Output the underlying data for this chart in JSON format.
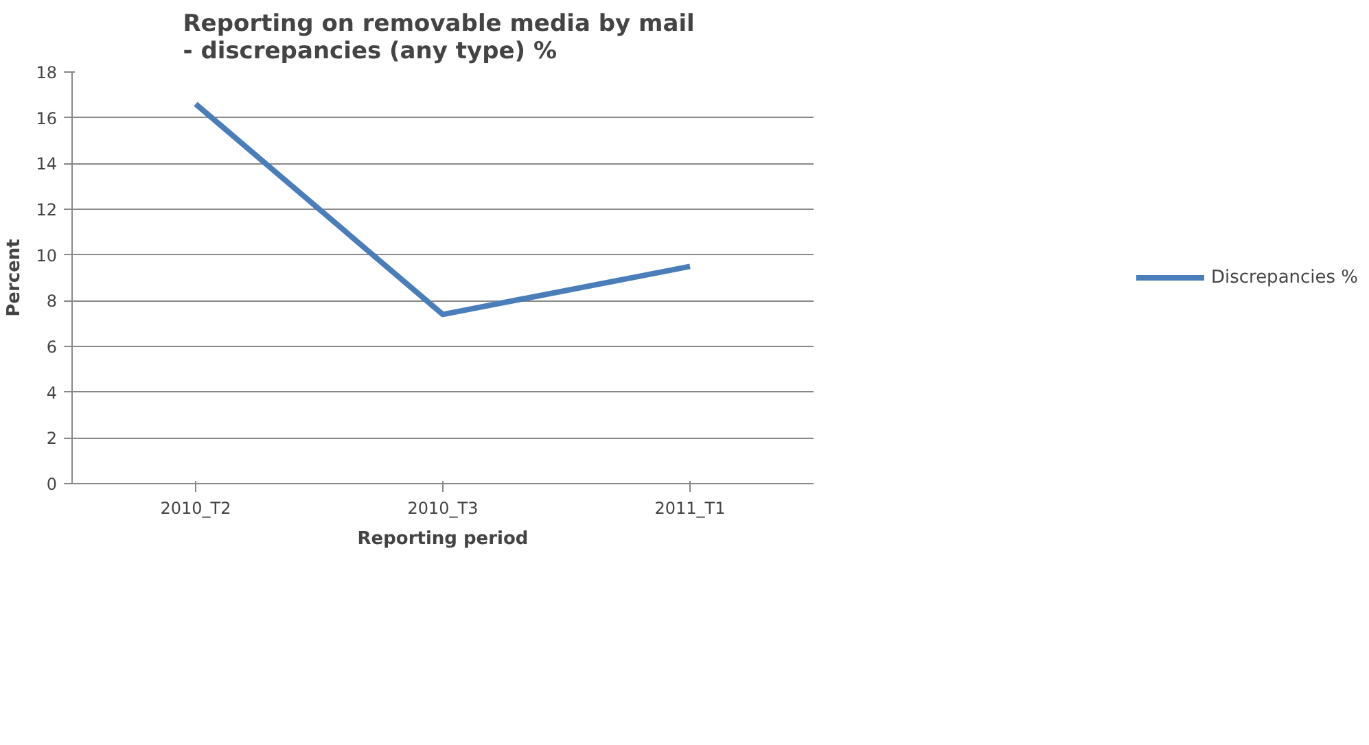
{
  "chart_data": {
    "type": "line",
    "title": "Reporting  on removable media by mail\n - discrepancies  (any type) %",
    "xlabel": "Reporting period",
    "ylabel": "Percent",
    "categories": [
      "2010_T2",
      "2010_T3",
      "2011_T1"
    ],
    "series": [
      {
        "name": "Discrepancies %",
        "color": "#4a7ebb",
        "values": [
          16.6,
          7.4,
          9.5
        ]
      }
    ],
    "ylim": [
      0,
      18
    ],
    "yticks": [
      0,
      2,
      4,
      6,
      8,
      10,
      12,
      14,
      16,
      18
    ],
    "grid": "y",
    "legend": "right",
    "marker": "none",
    "line_style": "solid"
  }
}
